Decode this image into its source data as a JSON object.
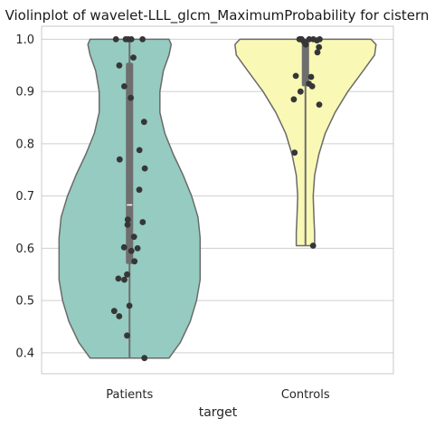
{
  "chart_data": {
    "type": "violin",
    "title": "Violinplot of wavelet-LLL_glcm_MaximumProbability for cistern",
    "xlabel": "target",
    "ylabel": "",
    "categories": [
      "Patients",
      "Controls"
    ],
    "ylim": [
      0.36,
      1.025
    ],
    "yticks": [
      0.4,
      0.5,
      0.6,
      0.7,
      0.8,
      0.9,
      1.0
    ],
    "ytick_labels": [
      "0.4",
      "0.5",
      "0.6",
      "0.7",
      "0.8",
      "0.9",
      "1.0"
    ],
    "grid": true,
    "colors": {
      "Patients": "#95cbc0",
      "Controls": "#f9f8b5",
      "outline": "#6a6a6a",
      "points": "#363636",
      "grid": "#cfcfcf",
      "box": "#6e6e6e",
      "median": "#ffffff"
    },
    "series": [
      {
        "name": "Patients",
        "min": 0.39,
        "max": 1.0,
        "q1": 0.57,
        "median": 0.683,
        "q3": 0.955,
        "density": [
          [
            0.39,
            0.56
          ],
          [
            0.42,
            0.72
          ],
          [
            0.46,
            0.86
          ],
          [
            0.5,
            0.95
          ],
          [
            0.54,
            1.0
          ],
          [
            0.58,
            1.0
          ],
          [
            0.62,
            1.0
          ],
          [
            0.66,
            0.97
          ],
          [
            0.7,
            0.88
          ],
          [
            0.74,
            0.76
          ],
          [
            0.78,
            0.62
          ],
          [
            0.82,
            0.5
          ],
          [
            0.86,
            0.43
          ],
          [
            0.9,
            0.43
          ],
          [
            0.94,
            0.48
          ],
          [
            0.97,
            0.56
          ],
          [
            0.99,
            0.59
          ],
          [
            1.0,
            0.56
          ]
        ],
        "points": [
          1.0,
          1.0,
          1.0,
          1.0,
          1.0,
          0.965,
          0.95,
          0.91,
          0.888,
          0.842,
          0.788,
          0.77,
          0.753,
          0.712,
          0.655,
          0.65,
          0.645,
          0.622,
          0.602,
          0.6,
          0.595,
          0.575,
          0.55,
          0.542,
          0.54,
          0.49,
          0.48,
          0.47,
          0.433,
          0.39
        ]
      },
      {
        "name": "Controls",
        "min": 0.605,
        "max": 1.0,
        "q1": 0.91,
        "median": 0.997,
        "q3": 1.0,
        "density": [
          [
            0.605,
            0.13
          ],
          [
            0.63,
            0.13
          ],
          [
            0.66,
            0.12
          ],
          [
            0.7,
            0.11
          ],
          [
            0.74,
            0.13
          ],
          [
            0.78,
            0.19
          ],
          [
            0.82,
            0.28
          ],
          [
            0.86,
            0.42
          ],
          [
            0.9,
            0.6
          ],
          [
            0.94,
            0.82
          ],
          [
            0.97,
            0.98
          ],
          [
            0.99,
            1.0
          ],
          [
            1.0,
            0.93
          ]
        ],
        "points": [
          1.0,
          1.0,
          1.0,
          1.0,
          1.0,
          1.0,
          1.0,
          0.998,
          0.995,
          0.99,
          0.985,
          0.975,
          0.93,
          0.928,
          0.915,
          0.91,
          0.9,
          0.885,
          0.875,
          0.783,
          0.605
        ]
      }
    ]
  }
}
